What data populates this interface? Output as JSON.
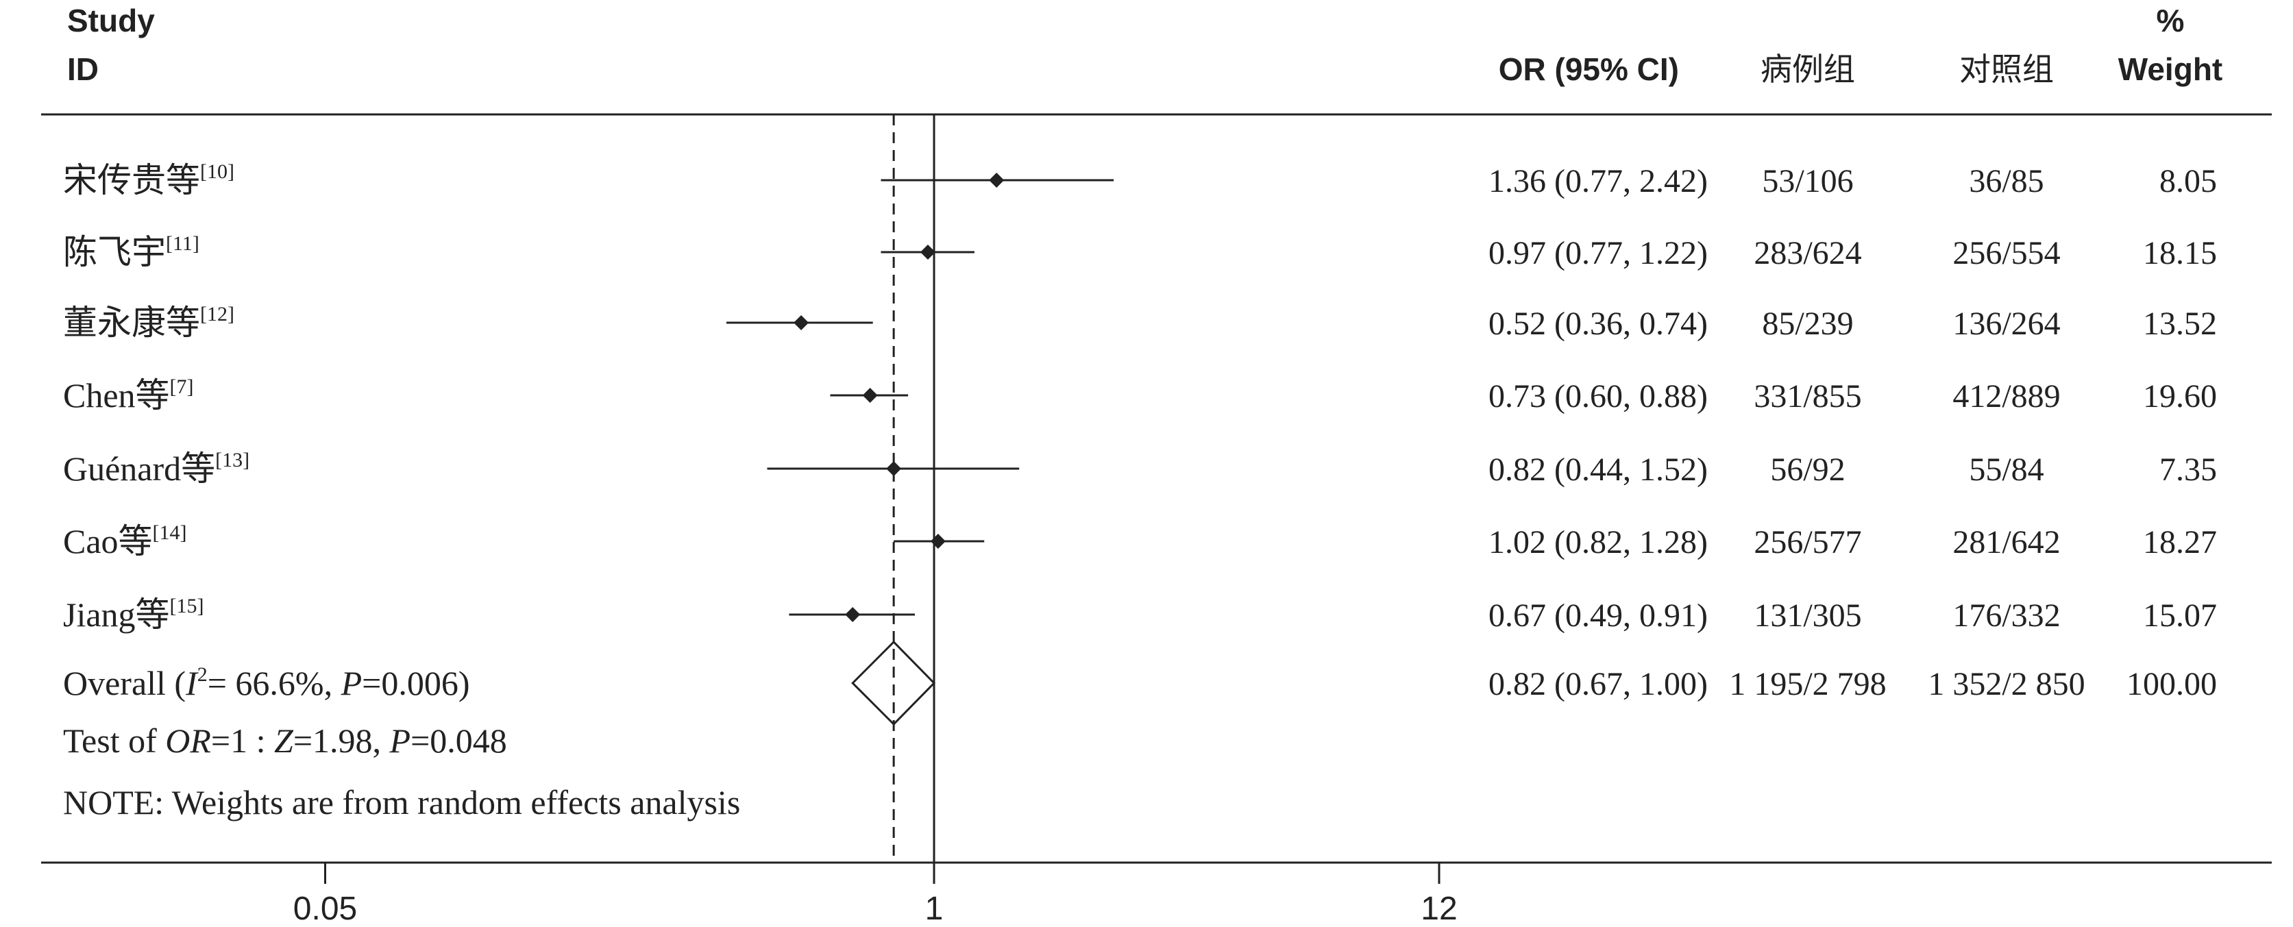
{
  "chart_data": {
    "type": "forest",
    "columns": {
      "study_top": "Study",
      "study": "ID",
      "or_ci": "OR (95% CI)",
      "case": "病例组",
      "control": "对照组",
      "weight_top": "%",
      "weight": "Weight"
    },
    "studies": [
      {
        "name": "宋传贵等",
        "ref": "[10]",
        "or": 1.36,
        "lo": 0.77,
        "hi": 2.42,
        "ci_text": "1.36 (0.77, 2.42)",
        "case": "53/106",
        "control": "36/85",
        "weight": "8.05"
      },
      {
        "name": "陈飞宇",
        "ref": "[11]",
        "or": 0.97,
        "lo": 0.77,
        "hi": 1.22,
        "ci_text": "0.97 (0.77, 1.22)",
        "case": "283/624",
        "control": "256/554",
        "weight": "18.15"
      },
      {
        "name": "董永康等",
        "ref": "[12]",
        "or": 0.52,
        "lo": 0.36,
        "hi": 0.74,
        "ci_text": "0.52 (0.36, 0.74)",
        "case": "85/239",
        "control": "136/264",
        "weight": "13.52"
      },
      {
        "name": "Chen等",
        "ref": "[7]",
        "or": 0.73,
        "lo": 0.6,
        "hi": 0.88,
        "ci_text": "0.73 (0.60, 0.88)",
        "case": "331/855",
        "control": "412/889",
        "weight": "19.60"
      },
      {
        "name": "Guénard等",
        "ref": "[13]",
        "or": 0.82,
        "lo": 0.44,
        "hi": 1.52,
        "ci_text": "0.82 (0.44, 1.52)",
        "case": "56/92",
        "control": "55/84",
        "weight": "7.35"
      },
      {
        "name": "Cao等",
        "ref": "[14]",
        "or": 1.02,
        "lo": 0.82,
        "hi": 1.28,
        "ci_text": "1.02 (0.82, 1.28)",
        "case": "256/577",
        "control": "281/642",
        "weight": "18.27"
      },
      {
        "name": "Jiang等",
        "ref": "[15]",
        "or": 0.67,
        "lo": 0.49,
        "hi": 0.91,
        "ci_text": "0.67 (0.49, 0.91)",
        "case": "131/305",
        "control": "176/332",
        "weight": "15.07"
      }
    ],
    "overall": {
      "label_prefix": "Overall  (",
      "i2_symbol": "I",
      "i2_sup": "2",
      "i2_rest": "= 66.6%, ",
      "p_symbol": "P",
      "p_rest": "=0.006)",
      "or": 0.82,
      "lo": 0.67,
      "hi": 1.0,
      "ci_text": "0.82 (0.67, 1.00)",
      "case": "1 195/2 798",
      "control": "1 352/2 850",
      "weight": "100.00"
    },
    "test": {
      "prefix": "Test of ",
      "or_symbol": "OR",
      "mid": "=1 : ",
      "z_symbol": "Z",
      "z_rest": "=1.98, ",
      "p_symbol": "P",
      "p_rest": "=0.048"
    },
    "note": "NOTE: Weights are from random effects analysis",
    "x_axis": {
      "scale": "log",
      "ticks": [
        0.05,
        1,
        12
      ],
      "tick_labels": [
        "0.05",
        "1",
        "12"
      ],
      "null_line": 1,
      "pooled_line": 0.82
    },
    "colors": {
      "ink": "#222222",
      "background": "#ffffff"
    }
  }
}
